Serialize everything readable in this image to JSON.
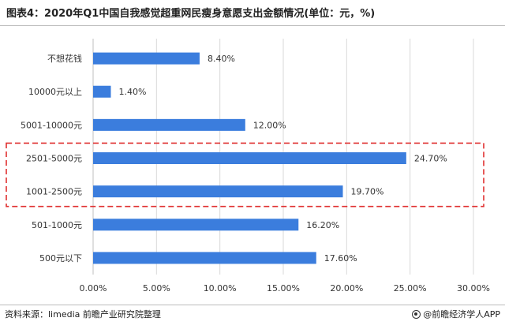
{
  "title": "图表4：2020年Q1中国自我感觉超重网民瘦身意愿支出金额情况(单位：元，%)",
  "footer": {
    "source": "资料来源：limedia 前瞻产业研究院整理",
    "brand": "@前瞻经济学人APP",
    "brand_icon": "brand-logo-icon"
  },
  "colors": {
    "bar": "#3b7ddd",
    "highlight_box": "#e03030",
    "grid": "#d9d9d9",
    "axis_text": "#333333"
  },
  "chart_data": {
    "type": "bar",
    "orientation": "horizontal",
    "categories": [
      "不想花钱",
      "10000元以上",
      "5001-10000元",
      "2501-5000元",
      "1001-2500元",
      "501-1000元",
      "500元以下"
    ],
    "values": [
      8.4,
      1.4,
      12.0,
      24.7,
      19.7,
      16.2,
      17.6
    ],
    "data_labels": [
      "8.40%",
      "1.40%",
      "12.00%",
      "24.70%",
      "19.70%",
      "16.20%",
      "17.60%"
    ],
    "xlim": [
      0,
      30
    ],
    "x_ticks": [
      "0.00%",
      "5.00%",
      "10.00%",
      "15.00%",
      "20.00%",
      "25.00%",
      "30.00%"
    ],
    "grid": "vertical",
    "highlighted_categories": [
      "2501-5000元",
      "1001-2500元"
    ]
  }
}
